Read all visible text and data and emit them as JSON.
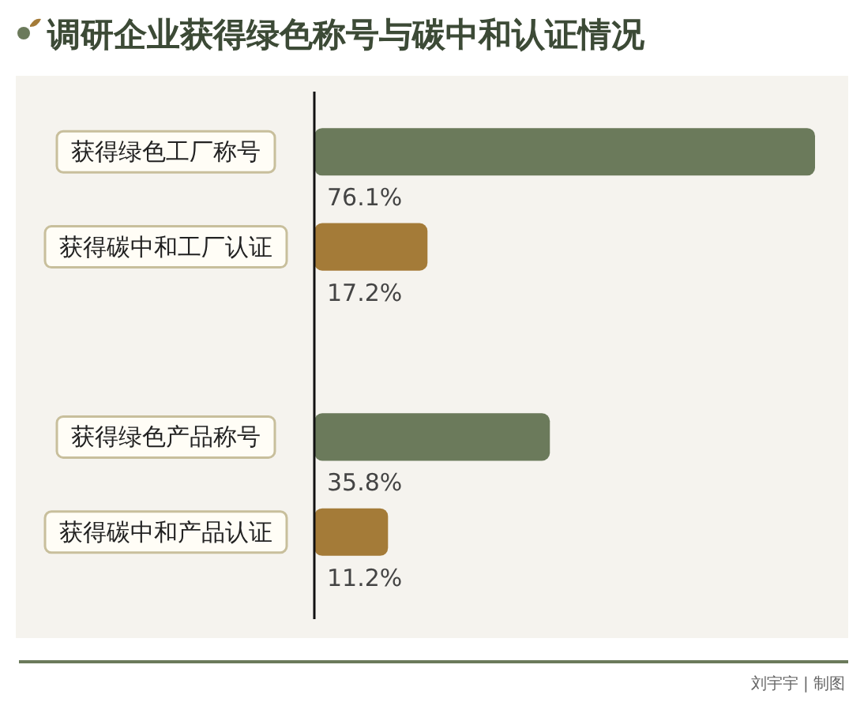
{
  "chart_data": {
    "type": "bar",
    "orientation": "horizontal",
    "title": "调研企业获得绿色称号与碳中和认证情况",
    "categories": [
      "获得绿色工厂称号",
      "获得碳中和工厂认证",
      null,
      "获得绿色产品称号",
      "获得碳中和产品认证"
    ],
    "values": [
      76.1,
      17.2,
      null,
      35.8,
      11.2
    ],
    "colors": [
      "#6b7a5b",
      "#a47b38",
      null,
      "#6b7a5b",
      "#a47b38"
    ],
    "value_labels": [
      "76.1%",
      "17.2%",
      null,
      "35.8%",
      "11.2%"
    ],
    "annotations": [
      "刘宇宇 | 制图"
    ]
  }
}
